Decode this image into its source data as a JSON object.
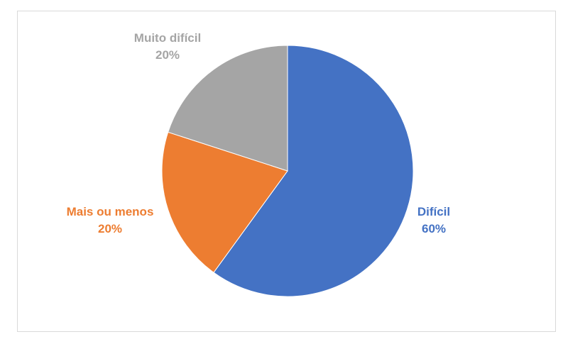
{
  "chart_data": {
    "type": "pie",
    "title": "",
    "slices": [
      {
        "label": "Difícil",
        "percent_label": "60%",
        "value": 60,
        "color": "#4472c4"
      },
      {
        "label": "Mais ou menos",
        "percent_label": "20%",
        "value": 20,
        "color": "#ed7d31"
      },
      {
        "label": "Muito difícil",
        "percent_label": "20%",
        "value": 20,
        "color": "#a5a5a5"
      }
    ],
    "legend": "none",
    "start_angle": "12 o'clock",
    "direction": "clockwise"
  }
}
